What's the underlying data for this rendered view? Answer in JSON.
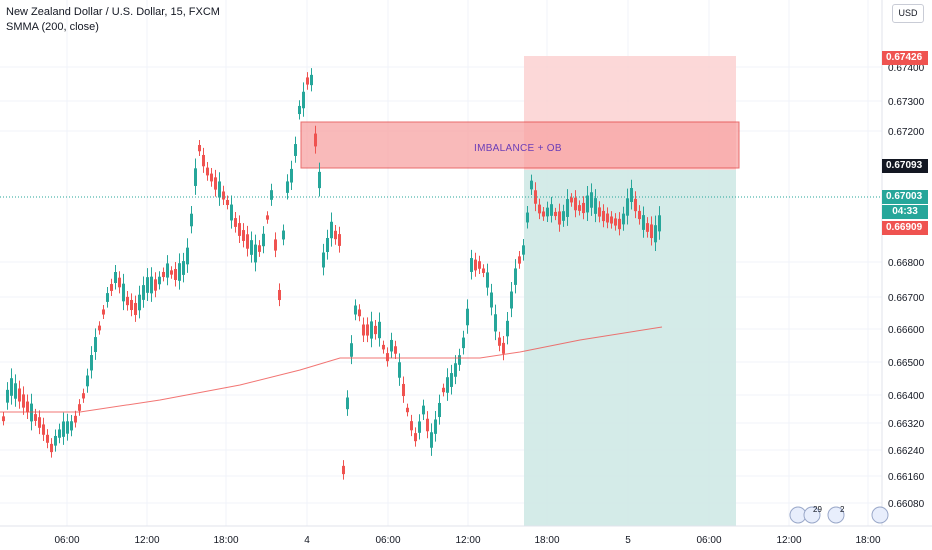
{
  "legend": {
    "symbol": "New Zealand Dollar / U.S. Dollar, 15, FXCM",
    "indicator": "SMMA (200, close)"
  },
  "currency_button": "USD",
  "price_axis": {
    "ticks": [
      "0.67400",
      "0.67300",
      "0.67200",
      "0.66800",
      "0.66700",
      "0.66600",
      "0.66500",
      "0.66400",
      "0.66320",
      "0.66240",
      "0.66160",
      "0.66080"
    ]
  },
  "time_axis": {
    "labels": [
      "06:00",
      "12:00",
      "18:00",
      "4",
      "06:00",
      "12:00",
      "18:00",
      "5",
      "06:00",
      "12:00",
      "18:00"
    ]
  },
  "price_tags": {
    "target": {
      "value": "0.67426",
      "color": "#ef5350"
    },
    "zone": {
      "value": "0.67093",
      "color": "#131722"
    },
    "current": {
      "value": "0.67003",
      "color": "#26a69a"
    },
    "countdown": {
      "value": "04:33",
      "color": "#26a69a"
    },
    "stop": {
      "value": "0.66909",
      "color": "#ef5350"
    }
  },
  "annotations": {
    "zone_label": "IMBALANCE + OB"
  },
  "events": {
    "badge_count_1": "29",
    "badge_count_2": "2"
  },
  "colors": {
    "up": "#26a69a",
    "down": "#ef5350",
    "smma": "#ef5350",
    "imbalance_fill": "#f8a3a3",
    "target_zone": "#fbd1d1",
    "stop_zone": "#cfe9e6"
  }
}
